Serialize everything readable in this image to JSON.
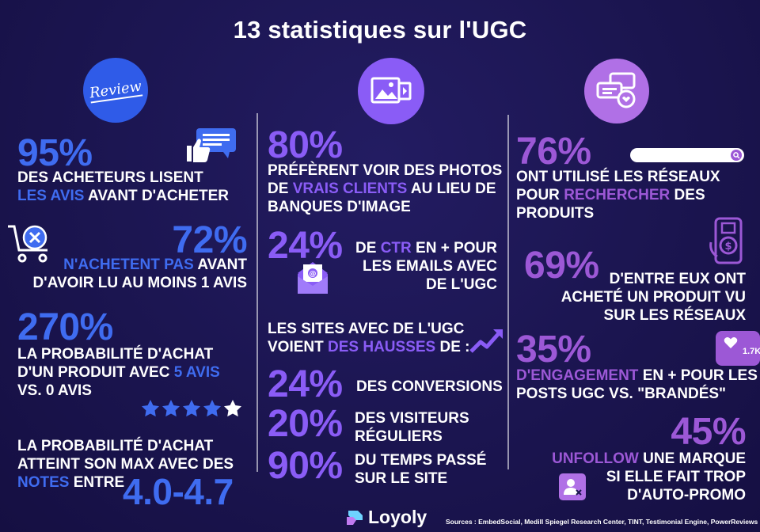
{
  "title": "13 statistiques sur l'UGC",
  "col1": {
    "icon_text": "Review",
    "s1": {
      "value": "95%",
      "l1": "DES ACHETEURS LISENT",
      "l2_hl": "LES AVIS",
      "l2_rest": " AVANT D'ACHETER"
    },
    "s2": {
      "value": "72%",
      "l1_hl": "N'ACHETENT PAS",
      "l1_rest": " AVANT",
      "l2": "D'AVOIR LU AU MOINS 1 AVIS"
    },
    "s3": {
      "value": "270%",
      "l1": "LA PROBABILITÉ D'ACHAT",
      "l2_pre": "D'UN PRODUIT AVEC ",
      "l2_hl": "5 AVIS",
      "l3": "VS. 0 AVIS"
    },
    "s4": {
      "l1": "LA PROBABILITÉ D'ACHAT",
      "l2": "ATTEINT SON MAX AVEC DES",
      "l3_hl": "NOTES",
      "l3_rest": " ENTRE",
      "value": "4.0-4.7"
    },
    "stars_rating": 4.5
  },
  "col2": {
    "s1": {
      "value": "80%",
      "l1": "PRÉFÈRENT VOIR DES PHOTOS",
      "l2_pre": "DE ",
      "l2_hl": "VRAIS CLIENTS",
      "l2_rest": " AU LIEU DE",
      "l3": "BANQUES D'IMAGE"
    },
    "s2": {
      "value": "24%",
      "l1_pre": "DE ",
      "l1_hl": "CTR",
      "l1_rest": " EN + POUR",
      "l2": "LES EMAILS AVEC",
      "l3": "DE L'UGC"
    },
    "s3": {
      "l1": "LES SITES AVEC DE L'UGC",
      "l2_pre": "VOIENT ",
      "l2_hl": "DES HAUSSES",
      "l2_rest": " DE :"
    },
    "s4": {
      "value": "24%",
      "l1": "DES CONVERSIONS"
    },
    "s5": {
      "value": "20%",
      "l1": "DES VISITEURS",
      "l2": "RÉGULIERS"
    },
    "s6": {
      "value": "90%",
      "l1": "DU TEMPS PASSÉ",
      "l2": "SUR LE SITE"
    }
  },
  "col3": {
    "s1": {
      "value": "76%",
      "l1": "ONT UTILISÉ LES RÉSEAUX",
      "l2_pre": "POUR ",
      "l2_hl": "RECHERCHER",
      "l2_rest": " DES",
      "l3": "PRODUITS"
    },
    "s2": {
      "value": "69%",
      "l1": "D'ENTRE EUX ONT",
      "l2": "ACHETÉ UN PRODUIT VU",
      "l3": "SUR LES RÉSEAUX"
    },
    "s3": {
      "value": "35%",
      "l1_hl": "D'ENGAGEMENT",
      "l1_rest": " EN + POUR LES",
      "l2": "POSTS UGC VS. \"BRANDÉS\""
    },
    "s4": {
      "value": "45%",
      "l1_hl": "UNFOLLOW",
      "l1_rest": " UNE MARQUE",
      "l2": "SI ELLE FAIT TROP",
      "l3": "D'AUTO-PROMO"
    },
    "like_badge": "1.7K"
  },
  "footer": {
    "logo": "Loyoly",
    "sources": "Sources : EmbedSocial, Medill Spiegel Research Center, TINT, Testimonial Engine, PowerReviews"
  },
  "colors": {
    "bg": "#1b1550",
    "blue": "#3f6cf0",
    "violet": "#8a5cf6",
    "purple": "#9c58d6"
  }
}
